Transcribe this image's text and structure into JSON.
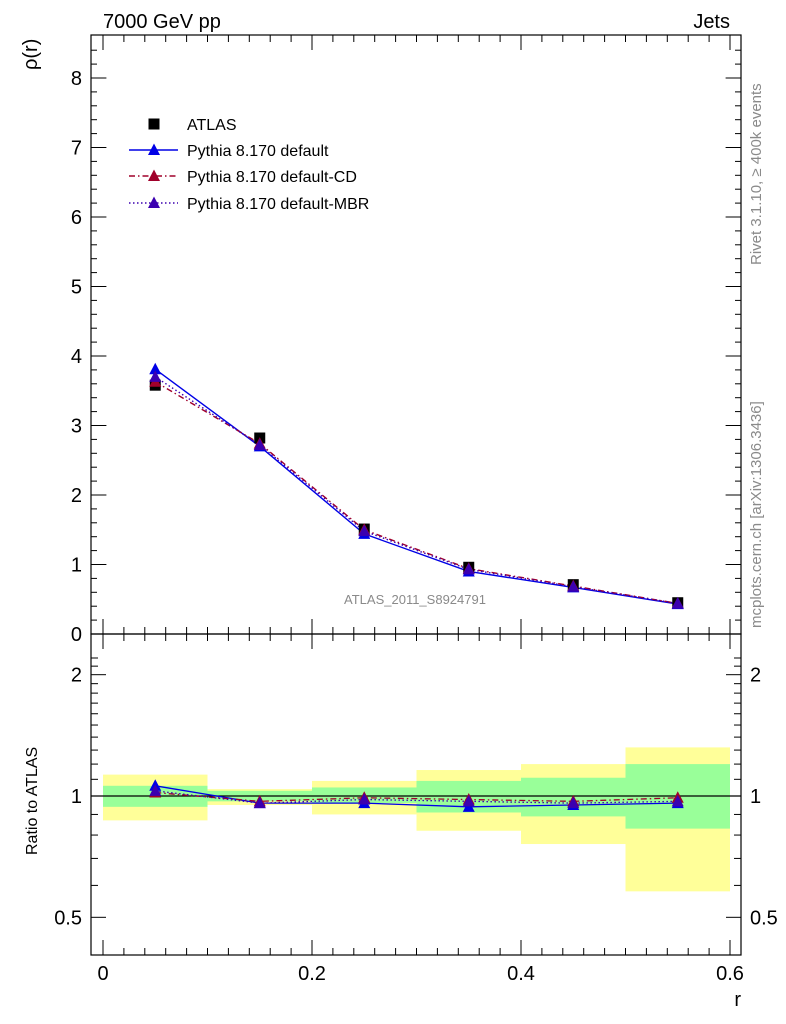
{
  "header": {
    "left": "7000 GeV pp",
    "right": "Jets"
  },
  "side": {
    "rivet": "Rivet 3.1.10, ≥ 400k events",
    "mcplots": "mcplots.cern.ch [arXiv:1306.3436]"
  },
  "watermark": "ATLAS_2011_S8924791",
  "colors": {
    "atlas": "#000000",
    "default": "#0000e6",
    "cd": "#a0002a",
    "mbr": "#3b00b0",
    "band_inner": "#99ff99",
    "band_outer": "#ffff99"
  },
  "chart_data": [
    {
      "type": "line",
      "ylabel": "ρ(r)",
      "xlim": [
        0,
        0.6
      ],
      "ylim": [
        0,
        8.6
      ],
      "yticks": [
        0,
        1,
        2,
        3,
        4,
        5,
        6,
        7,
        8
      ],
      "x": [
        0.05,
        0.15,
        0.25,
        0.35,
        0.45,
        0.55
      ],
      "legend_position": "top-left",
      "series": [
        {
          "name": "ATLAS",
          "marker": "square",
          "values": [
            3.58,
            2.82,
            1.51,
            0.96,
            0.71,
            0.45
          ]
        },
        {
          "name": "Pythia 8.170 default",
          "style": "solid",
          "values": [
            3.81,
            2.7,
            1.44,
            0.9,
            0.67,
            0.43
          ]
        },
        {
          "name": "Pythia 8.170 default-CD",
          "style": "dashdot",
          "values": [
            3.63,
            2.74,
            1.5,
            0.94,
            0.69,
            0.44
          ]
        },
        {
          "name": "Pythia 8.170 default-MBR",
          "style": "dotted",
          "values": [
            3.7,
            2.72,
            1.48,
            0.93,
            0.68,
            0.44
          ]
        }
      ]
    },
    {
      "type": "line",
      "ylabel": "Ratio to ATLAS",
      "xlabel": "r",
      "xlim": [
        0,
        0.6
      ],
      "ylim": [
        0.4,
        2.3
      ],
      "yticks": [
        0.5,
        1,
        2
      ],
      "xticks": [
        0,
        0.2,
        0.4,
        0.6
      ],
      "x": [
        0.05,
        0.15,
        0.25,
        0.35,
        0.45,
        0.55
      ],
      "bands": [
        {
          "x0": 0.0,
          "x1": 0.1,
          "inner": [
            0.94,
            1.06
          ],
          "outer": [
            0.87,
            1.13
          ]
        },
        {
          "x0": 0.1,
          "x1": 0.2,
          "inner": [
            0.97,
            1.03
          ],
          "outer": [
            0.95,
            1.04
          ]
        },
        {
          "x0": 0.2,
          "x1": 0.3,
          "inner": [
            0.96,
            1.05
          ],
          "outer": [
            0.9,
            1.09
          ]
        },
        {
          "x0": 0.3,
          "x1": 0.4,
          "inner": [
            0.91,
            1.09
          ],
          "outer": [
            0.82,
            1.16
          ]
        },
        {
          "x0": 0.4,
          "x1": 0.5,
          "inner": [
            0.89,
            1.11
          ],
          "outer": [
            0.76,
            1.2
          ]
        },
        {
          "x0": 0.5,
          "x1": 0.6,
          "inner": [
            0.83,
            1.2
          ],
          "outer": [
            0.58,
            1.32
          ]
        }
      ],
      "series": [
        {
          "name": "Pythia 8.170 default",
          "values": [
            1.06,
            0.96,
            0.96,
            0.94,
            0.95,
            0.96
          ]
        },
        {
          "name": "Pythia 8.170 default-CD",
          "values": [
            1.02,
            0.97,
            0.99,
            0.98,
            0.97,
            0.99
          ]
        },
        {
          "name": "Pythia 8.170 default-MBR",
          "values": [
            1.03,
            0.96,
            0.98,
            0.97,
            0.96,
            0.97
          ]
        }
      ]
    }
  ]
}
